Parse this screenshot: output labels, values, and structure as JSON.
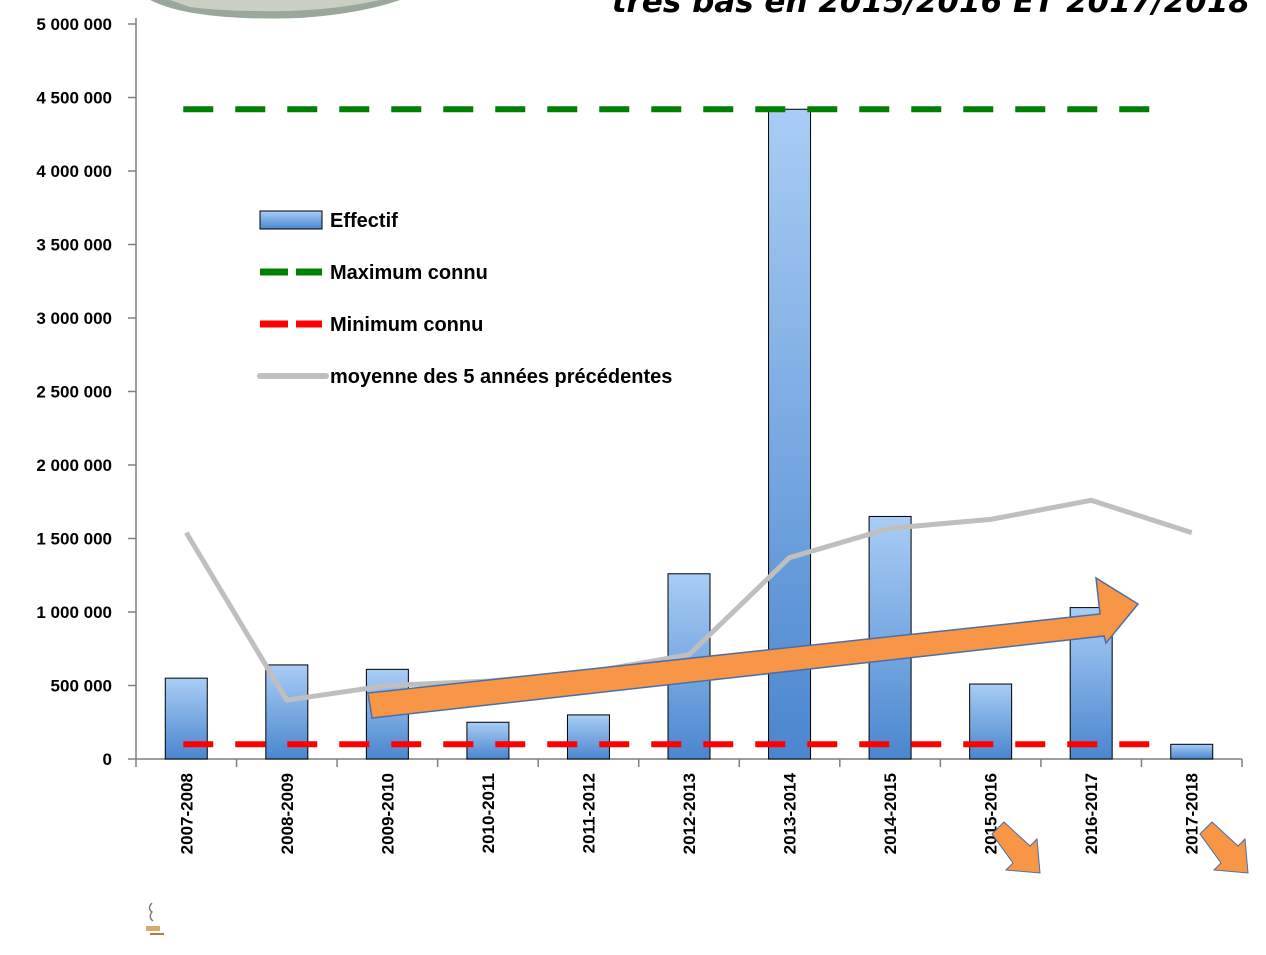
{
  "chart_data": {
    "type": "bar",
    "title_fragment": "très bas en 2015/2016 ET 2017/2018",
    "categories": [
      "2007-2008",
      "2008-2009",
      "2009-2010",
      "2010-2011",
      "2011-2012",
      "2012-2013",
      "2013-2014",
      "2014-2015",
      "2015-2016",
      "2016-2017",
      "2017-2018"
    ],
    "ylim": [
      0,
      5000000
    ],
    "y_ticks": [
      0,
      500000,
      1000000,
      1500000,
      2000000,
      2500000,
      3000000,
      3500000,
      4000000,
      4500000,
      5000000
    ],
    "y_tick_labels": [
      "0",
      "500 000",
      "1 000 000",
      "1 500 000",
      "2 000 000",
      "2 500 000",
      "3 000 000",
      "3 500 000",
      "4 000 000",
      "4 500 000",
      "5 000 000"
    ],
    "series": [
      {
        "name": "Effectif",
        "kind": "bar",
        "color": "#5b9bd5",
        "values": [
          550000,
          640000,
          610000,
          250000,
          300000,
          1260000,
          4420000,
          1650000,
          510000,
          1030000,
          100000
        ]
      },
      {
        "name": "Maximum connu",
        "kind": "hline",
        "color": "#008000",
        "value": 4420000
      },
      {
        "name": "Minimum connu",
        "kind": "hline",
        "color": "#ff0000",
        "value": 100000
      },
      {
        "name": "moyenne des 5 années précédentes",
        "kind": "line",
        "color": "#bfbfbf",
        "values": [
          1540000,
          400000,
          500000,
          530000,
          590000,
          710000,
          1370000,
          1570000,
          1630000,
          1760000,
          1540000
        ]
      }
    ],
    "legend_position": "upper-left",
    "grid": false,
    "annotations": [
      "trend-arrow-up",
      "down-arrow-2015-2016",
      "down-arrow-2017-2018"
    ]
  }
}
